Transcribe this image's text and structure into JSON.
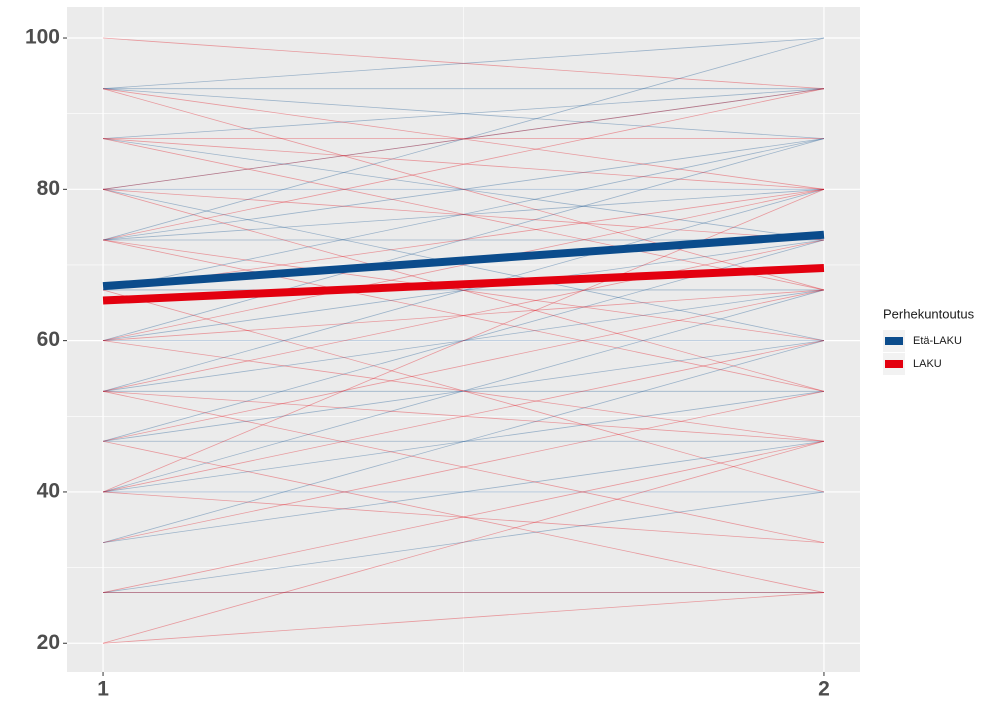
{
  "chart_data": {
    "type": "line",
    "x": [
      1,
      2
    ],
    "xlim": [
      0.95,
      2.05
    ],
    "xticks": [
      1,
      2
    ],
    "xminor": [
      1.5
    ],
    "ylim": [
      16.2,
      104.1
    ],
    "yticks": [
      20,
      40,
      60,
      80,
      100
    ],
    "yminor": [
      30,
      50,
      70,
      90
    ],
    "grid": true,
    "legend_title": "Perhekuntoutus",
    "series": [
      {
        "name": "Etä-LAKU",
        "color": "#0B4C8C",
        "values": [
          67.2,
          74.0
        ],
        "individuals": [
          [
            93.3,
            100
          ],
          [
            93.3,
            86.7
          ],
          [
            86.7,
            73.3
          ],
          [
            80,
            93.3
          ],
          [
            73.3,
            86.7
          ],
          [
            73.3,
            80
          ],
          [
            66.7,
            86.7
          ],
          [
            60,
            73.3
          ],
          [
            60,
            60
          ],
          [
            53.3,
            66.7
          ],
          [
            53.3,
            80
          ],
          [
            46.7,
            60
          ],
          [
            46.7,
            73.3
          ],
          [
            40,
            53.3
          ],
          [
            40,
            40
          ],
          [
            33.3,
            46.7
          ],
          [
            26.7,
            40
          ],
          [
            26.7,
            26.7
          ],
          [
            80,
            80
          ],
          [
            73.3,
            100
          ],
          [
            86.7,
            93.3
          ],
          [
            60,
            86.7
          ],
          [
            53.3,
            53.3
          ],
          [
            46.7,
            46.7
          ],
          [
            40,
            66.7
          ],
          [
            33.3,
            60
          ],
          [
            66.7,
            66.7
          ],
          [
            93.3,
            93.3
          ],
          [
            80,
            60
          ],
          [
            73.3,
            73.3
          ]
        ]
      },
      {
        "name": "LAKU",
        "color": "#E3000F",
        "values": [
          65.3,
          69.6
        ],
        "individuals": [
          [
            100,
            93.3
          ],
          [
            93.3,
            80
          ],
          [
            86.7,
            86.7
          ],
          [
            86.7,
            66.7
          ],
          [
            80,
            93.3
          ],
          [
            80,
            73.3
          ],
          [
            73.3,
            93.3
          ],
          [
            73.3,
            53.3
          ],
          [
            66.7,
            80
          ],
          [
            60,
            46.7
          ],
          [
            60,
            80
          ],
          [
            53.3,
            73.3
          ],
          [
            53.3,
            33.3
          ],
          [
            46.7,
            66.7
          ],
          [
            46.7,
            26.7
          ],
          [
            40,
            60
          ],
          [
            40,
            33.3
          ],
          [
            33.3,
            53.3
          ],
          [
            26.7,
            26.7
          ],
          [
            20,
            46.7
          ],
          [
            20,
            26.7
          ],
          [
            93.3,
            66.7
          ],
          [
            86.7,
            80
          ],
          [
            80,
            53.3
          ],
          [
            73.3,
            60
          ],
          [
            66.7,
            40
          ],
          [
            60,
            66.7
          ],
          [
            53.3,
            46.7
          ],
          [
            40,
            80
          ],
          [
            26.7,
            46.7
          ]
        ]
      }
    ]
  }
}
